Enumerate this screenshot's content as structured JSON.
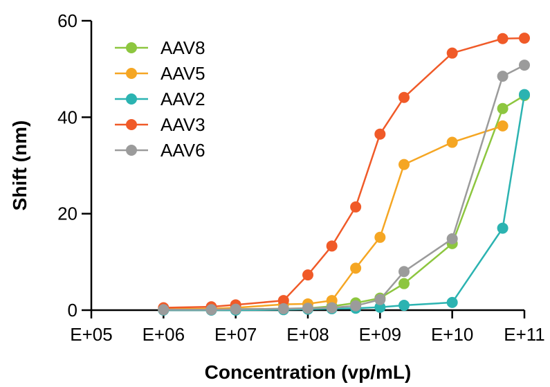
{
  "chart_data": {
    "type": "line",
    "title": "",
    "xlabel": "Concentration (vp/mL)",
    "ylabel": "Shift (nm)",
    "xscale": "log",
    "xlim": [
      100000,
      100000000000
    ],
    "ylim": [
      0,
      60
    ],
    "x_ticks": [
      {
        "value": 100000,
        "label": "E+05"
      },
      {
        "value": 1000000,
        "label": "E+06"
      },
      {
        "value": 10000000,
        "label": "E+07"
      },
      {
        "value": 100000000,
        "label": "E+08"
      },
      {
        "value": 1000000000,
        "label": "E+09"
      },
      {
        "value": 10000000000,
        "label": "E+10"
      },
      {
        "value": 100000000000,
        "label": "E+11"
      }
    ],
    "y_ticks": [
      {
        "value": 0,
        "label": "0"
      },
      {
        "value": 20,
        "label": "20"
      },
      {
        "value": 40,
        "label": "40"
      },
      {
        "value": 60,
        "label": "60"
      }
    ],
    "grid": false,
    "legend_position": "top-left",
    "series": [
      {
        "name": "AAV8",
        "color": "#8DC63F",
        "points": [
          [
            1000000,
            0.1
          ],
          [
            4600000,
            0.2
          ],
          [
            10000000,
            0.2
          ],
          [
            46000000,
            0.3
          ],
          [
            100000000,
            0.4
          ],
          [
            215000000,
            0.8
          ],
          [
            460000000,
            1.5
          ],
          [
            1000000000,
            2.5
          ],
          [
            2150000000,
            5.5
          ],
          [
            10000000000,
            13.8
          ],
          [
            50000000000,
            41.8
          ],
          [
            100000000000,
            44.5
          ]
        ]
      },
      {
        "name": "AAV5",
        "color": "#F5A623",
        "points": [
          [
            1000000,
            0.2
          ],
          [
            4600000,
            0.3
          ],
          [
            10000000,
            0.5
          ],
          [
            46000000,
            1.2
          ],
          [
            100000000,
            1.3
          ],
          [
            215000000,
            2.0
          ],
          [
            460000000,
            8.7
          ],
          [
            1000000000,
            15.1
          ],
          [
            2150000000,
            30.2
          ],
          [
            10000000000,
            34.8
          ],
          [
            50000000000,
            38.2
          ]
        ]
      },
      {
        "name": "AAV2",
        "color": "#2BB3B1",
        "points": [
          [
            1000000,
            0.0
          ],
          [
            4600000,
            0.0
          ],
          [
            10000000,
            0.0
          ],
          [
            46000000,
            0.1
          ],
          [
            100000000,
            0.2
          ],
          [
            215000000,
            0.3
          ],
          [
            460000000,
            0.4
          ],
          [
            1000000000,
            0.6
          ],
          [
            2150000000,
            1.0
          ],
          [
            10000000000,
            1.6
          ],
          [
            50000000000,
            17.0
          ],
          [
            100000000000,
            44.7
          ]
        ]
      },
      {
        "name": "AAV3",
        "color": "#F05A28",
        "points": [
          [
            1000000,
            0.5
          ],
          [
            4600000,
            0.7
          ],
          [
            10000000,
            1.1
          ],
          [
            46000000,
            2.0
          ],
          [
            100000000,
            7.3
          ],
          [
            215000000,
            13.3
          ],
          [
            460000000,
            21.4
          ],
          [
            1000000000,
            36.5
          ],
          [
            2150000000,
            44.1
          ],
          [
            10000000000,
            53.3
          ],
          [
            50000000000,
            56.3
          ],
          [
            100000000000,
            56.4
          ]
        ]
      },
      {
        "name": "AAV6",
        "color": "#9B9B9B",
        "points": [
          [
            1000000,
            0.1
          ],
          [
            4600000,
            0.1
          ],
          [
            10000000,
            0.2
          ],
          [
            46000000,
            0.3
          ],
          [
            100000000,
            0.4
          ],
          [
            215000000,
            0.5
          ],
          [
            460000000,
            0.9
          ],
          [
            1000000000,
            2.2
          ],
          [
            2150000000,
            8.0
          ],
          [
            10000000000,
            14.8
          ],
          [
            50000000000,
            48.5
          ],
          [
            100000000000,
            50.8
          ]
        ]
      }
    ]
  }
}
